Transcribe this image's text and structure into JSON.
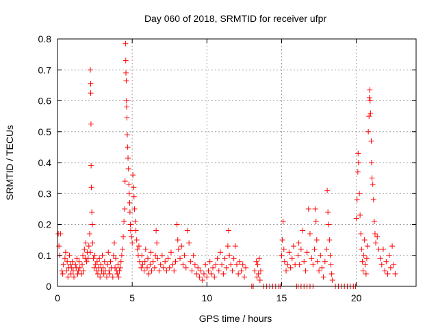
{
  "chart_data": {
    "type": "scatter",
    "title": "Day 060 of 2018, SRMTID for receiver ufpr",
    "xlabel": "GPS time / hours",
    "ylabel": "SRMTID / TECUs",
    "xlim": [
      0,
      24
    ],
    "ylim": [
      0,
      0.8
    ],
    "xticks": [
      "0",
      "5",
      "10",
      "15",
      "20"
    ],
    "yticks": [
      "0",
      "0.1",
      "0.2",
      "0.3",
      "0.4",
      "0.5",
      "0.6",
      "0.7",
      "0.8"
    ],
    "grid": true,
    "marker": "+",
    "color": "#ff0000",
    "series": [
      {
        "name": "SRMTID",
        "points": [
          [
            0.05,
            0.17
          ],
          [
            0.1,
            0.13
          ],
          [
            0.15,
            0.1
          ],
          [
            0.2,
            0.17
          ],
          [
            0.3,
            0.05
          ],
          [
            0.35,
            0.04
          ],
          [
            0.4,
            0.07
          ],
          [
            0.5,
            0.09
          ],
          [
            0.55,
            0.11
          ],
          [
            0.6,
            0.05
          ],
          [
            0.65,
            0.08
          ],
          [
            0.7,
            0.03
          ],
          [
            0.75,
            0.06
          ],
          [
            0.8,
            0.1
          ],
          [
            0.85,
            0.07
          ],
          [
            0.9,
            0.04
          ],
          [
            0.95,
            0.06
          ],
          [
            1.0,
            0.08
          ],
          [
            1.05,
            0.05
          ],
          [
            1.1,
            0.03
          ],
          [
            1.2,
            0.07
          ],
          [
            1.25,
            0.06
          ],
          [
            1.3,
            0.09
          ],
          [
            1.35,
            0.04
          ],
          [
            1.4,
            0.05
          ],
          [
            1.45,
            0.08
          ],
          [
            1.5,
            0.06
          ],
          [
            1.6,
            0.04
          ],
          [
            1.65,
            0.07
          ],
          [
            1.7,
            0.1
          ],
          [
            1.75,
            0.05
          ],
          [
            1.8,
            0.12
          ],
          [
            1.85,
            0.09
          ],
          [
            1.9,
            0.14
          ],
          [
            1.95,
            0.08
          ],
          [
            2.0,
            0.11
          ],
          [
            2.05,
            0.09
          ],
          [
            2.1,
            0.13
          ],
          [
            2.15,
            0.17
          ],
          [
            2.2,
            0.11
          ],
          [
            2.2,
            0.7
          ],
          [
            2.22,
            0.655
          ],
          [
            2.22,
            0.625
          ],
          [
            2.24,
            0.525
          ],
          [
            2.25,
            0.39
          ],
          [
            2.27,
            0.32
          ],
          [
            2.3,
            0.24
          ],
          [
            2.33,
            0.2
          ],
          [
            2.35,
            0.14
          ],
          [
            2.4,
            0.09
          ],
          [
            2.45,
            0.06
          ],
          [
            2.5,
            0.1
          ],
          [
            2.55,
            0.07
          ],
          [
            2.6,
            0.05
          ],
          [
            2.65,
            0.08
          ],
          [
            2.7,
            0.04
          ],
          [
            2.75,
            0.06
          ],
          [
            2.8,
            0.09
          ],
          [
            2.85,
            0.03
          ],
          [
            2.9,
            0.07
          ],
          [
            2.95,
            0.05
          ],
          [
            3.0,
            0.1
          ],
          [
            3.05,
            0.06
          ],
          [
            3.1,
            0.04
          ],
          [
            3.15,
            0.08
          ],
          [
            3.2,
            0.05
          ],
          [
            3.3,
            0.03
          ],
          [
            3.35,
            0.07
          ],
          [
            3.4,
            0.11
          ],
          [
            3.45,
            0.05
          ],
          [
            3.5,
            0.04
          ],
          [
            3.55,
            0.08
          ],
          [
            3.6,
            0.06
          ],
          [
            3.7,
            0.03
          ],
          [
            3.75,
            0.1
          ],
          [
            3.8,
            0.14
          ],
          [
            3.85,
            0.06
          ],
          [
            3.9,
            0.09
          ],
          [
            3.95,
            0.05
          ],
          [
            4.0,
            0.04
          ],
          [
            4.05,
            0.07
          ],
          [
            4.1,
            0.03
          ],
          [
            4.15,
            0.05
          ],
          [
            4.2,
            0.06
          ],
          [
            4.25,
            0.08
          ],
          [
            4.3,
            0.1
          ],
          [
            4.35,
            0.12
          ],
          [
            4.4,
            0.16
          ],
          [
            4.45,
            0.21
          ],
          [
            4.5,
            0.25
          ],
          [
            4.52,
            0.34
          ],
          [
            4.55,
            0.785
          ],
          [
            4.57,
            0.73
          ],
          [
            4.58,
            0.69
          ],
          [
            4.6,
            0.665
          ],
          [
            4.62,
            0.6
          ],
          [
            4.63,
            0.58
          ],
          [
            4.65,
            0.545
          ],
          [
            4.67,
            0.49
          ],
          [
            4.7,
            0.45
          ],
          [
            4.72,
            0.415
          ],
          [
            4.75,
            0.38
          ],
          [
            4.78,
            0.33
          ],
          [
            4.8,
            0.3
          ],
          [
            4.83,
            0.27
          ],
          [
            4.85,
            0.24
          ],
          [
            4.88,
            0.2
          ],
          [
            4.9,
            0.18
          ],
          [
            4.95,
            0.16
          ],
          [
            5.0,
            0.14
          ],
          [
            5.05,
            0.36
          ],
          [
            5.1,
            0.32
          ],
          [
            5.12,
            0.29
          ],
          [
            5.15,
            0.25
          ],
          [
            5.2,
            0.21
          ],
          [
            5.25,
            0.18
          ],
          [
            5.3,
            0.15
          ],
          [
            5.35,
            0.12
          ],
          [
            5.4,
            0.1
          ],
          [
            5.45,
            0.13
          ],
          [
            5.5,
            0.08
          ],
          [
            5.6,
            0.06
          ],
          [
            5.65,
            0.1
          ],
          [
            5.7,
            0.07
          ],
          [
            5.8,
            0.05
          ],
          [
            5.85,
            0.08
          ],
          [
            5.9,
            0.12
          ],
          [
            6.0,
            0.06
          ],
          [
            6.05,
            0.09
          ],
          [
            6.1,
            0.04
          ],
          [
            6.2,
            0.07
          ],
          [
            6.25,
            0.11
          ],
          [
            6.3,
            0.05
          ],
          [
            6.4,
            0.08
          ],
          [
            6.5,
            0.06
          ],
          [
            6.55,
            0.1
          ],
          [
            6.6,
            0.18
          ],
          [
            6.65,
            0.14
          ],
          [
            6.7,
            0.09
          ],
          [
            6.8,
            0.05
          ],
          [
            6.9,
            0.07
          ],
          [
            7.0,
            0.1
          ],
          [
            7.1,
            0.06
          ],
          [
            7.2,
            0.08
          ],
          [
            7.3,
            0.05
          ],
          [
            7.4,
            0.09
          ],
          [
            7.5,
            0.06
          ],
          [
            7.6,
            0.11
          ],
          [
            7.7,
            0.07
          ],
          [
            7.8,
            0.05
          ],
          [
            7.9,
            0.08
          ],
          [
            8.0,
            0.2
          ],
          [
            8.05,
            0.15
          ],
          [
            8.1,
            0.12
          ],
          [
            8.2,
            0.09
          ],
          [
            8.3,
            0.13
          ],
          [
            8.4,
            0.07
          ],
          [
            8.5,
            0.1
          ],
          [
            8.6,
            0.06
          ],
          [
            8.7,
            0.18
          ],
          [
            8.8,
            0.14
          ],
          [
            8.9,
            0.08
          ],
          [
            9.0,
            0.05
          ],
          [
            9.1,
            0.1
          ],
          [
            9.2,
            0.07
          ],
          [
            9.3,
            0.04
          ],
          [
            9.4,
            0.06
          ],
          [
            9.5,
            0.03
          ],
          [
            9.6,
            0.05
          ],
          [
            9.7,
            0.02
          ],
          [
            9.8,
            0.04
          ],
          [
            9.9,
            0.07
          ],
          [
            10.0,
            0.03
          ],
          [
            10.1,
            0.05
          ],
          [
            10.2,
            0.08
          ],
          [
            10.3,
            0.04
          ],
          [
            10.4,
            0.06
          ],
          [
            10.5,
            0.03
          ],
          [
            10.6,
            0.07
          ],
          [
            10.7,
            0.09
          ],
          [
            10.8,
            0.05
          ],
          [
            10.9,
            0.11
          ],
          [
            11.0,
            0.07
          ],
          [
            11.1,
            0.04
          ],
          [
            11.2,
            0.09
          ],
          [
            11.3,
            0.06
          ],
          [
            11.4,
            0.13
          ],
          [
            11.45,
            0.18
          ],
          [
            11.5,
            0.1
          ],
          [
            11.6,
            0.07
          ],
          [
            11.7,
            0.05
          ],
          [
            11.8,
            0.09
          ],
          [
            11.9,
            0.13
          ],
          [
            12.0,
            0.07
          ],
          [
            12.1,
            0.04
          ],
          [
            12.2,
            0.08
          ],
          [
            12.3,
            0.05
          ],
          [
            12.4,
            0.07
          ],
          [
            12.5,
            0.03
          ],
          [
            12.6,
            0.06
          ],
          [
            13.0,
            0.0
          ],
          [
            13.1,
            0.0
          ],
          [
            13.2,
            0.05
          ],
          [
            13.3,
            0.08
          ],
          [
            13.35,
            0.03
          ],
          [
            13.4,
            0.07
          ],
          [
            13.45,
            0.04
          ],
          [
            13.5,
            0.09
          ],
          [
            13.55,
            0.02
          ],
          [
            13.6,
            0.05
          ],
          [
            13.8,
            0.0
          ],
          [
            14.0,
            0.0
          ],
          [
            14.2,
            0.0
          ],
          [
            14.4,
            0.0
          ],
          [
            14.6,
            0.0
          ],
          [
            14.8,
            0.0
          ],
          [
            14.9,
            0.0
          ],
          [
            15.0,
            0.1
          ],
          [
            15.05,
            0.15
          ],
          [
            15.1,
            0.21
          ],
          [
            15.15,
            0.12
          ],
          [
            15.2,
            0.08
          ],
          [
            15.3,
            0.05
          ],
          [
            15.4,
            0.07
          ],
          [
            15.5,
            0.11
          ],
          [
            15.6,
            0.06
          ],
          [
            15.7,
            0.09
          ],
          [
            15.8,
            0.13
          ],
          [
            15.9,
            0.07
          ],
          [
            16.0,
            0.0
          ],
          [
            16.1,
            0.0
          ],
          [
            16.3,
            0.0
          ],
          [
            16.5,
            0.0
          ],
          [
            16.7,
            0.0
          ],
          [
            16.9,
            0.0
          ],
          [
            17.1,
            0.0
          ],
          [
            16.1,
            0.1
          ],
          [
            16.15,
            0.14
          ],
          [
            16.2,
            0.07
          ],
          [
            16.3,
            0.12
          ],
          [
            16.4,
            0.18
          ],
          [
            16.5,
            0.08
          ],
          [
            16.6,
            0.05
          ],
          [
            16.7,
            0.11
          ],
          [
            16.8,
            0.25
          ],
          [
            16.9,
            0.17
          ],
          [
            17.0,
            0.09
          ],
          [
            17.1,
            0.07
          ],
          [
            17.2,
            0.12
          ],
          [
            17.25,
            0.25
          ],
          [
            17.3,
            0.21
          ],
          [
            17.35,
            0.15
          ],
          [
            17.4,
            0.08
          ],
          [
            17.5,
            0.05
          ],
          [
            17.6,
            0.1
          ],
          [
            17.7,
            0.06
          ],
          [
            17.8,
            0.03
          ],
          [
            17.9,
            0.08
          ],
          [
            18.0,
            0.12
          ],
          [
            18.05,
            0.31
          ],
          [
            18.1,
            0.24
          ],
          [
            18.15,
            0.2
          ],
          [
            18.2,
            0.15
          ],
          [
            18.25,
            0.1
          ],
          [
            18.3,
            0.07
          ],
          [
            18.35,
            0.04
          ],
          [
            18.4,
            0.02
          ],
          [
            18.6,
            0.0
          ],
          [
            18.8,
            0.0
          ],
          [
            19.0,
            0.0
          ],
          [
            19.2,
            0.0
          ],
          [
            19.4,
            0.0
          ],
          [
            19.6,
            0.0
          ],
          [
            19.8,
            0.0
          ],
          [
            19.95,
            0.0
          ],
          [
            20.0,
            0.22
          ],
          [
            20.05,
            0.28
          ],
          [
            20.1,
            0.37
          ],
          [
            20.12,
            0.43
          ],
          [
            20.15,
            0.4
          ],
          [
            20.2,
            0.3
          ],
          [
            20.25,
            0.23
          ],
          [
            20.3,
            0.17
          ],
          [
            20.35,
            0.12
          ],
          [
            20.4,
            0.08
          ],
          [
            20.45,
            0.05
          ],
          [
            20.5,
            0.1
          ],
          [
            20.55,
            0.15
          ],
          [
            20.6,
            0.07
          ],
          [
            20.65,
            0.04
          ],
          [
            20.7,
            0.09
          ],
          [
            20.75,
            0.13
          ],
          [
            20.8,
            0.5
          ],
          [
            20.85,
            0.55
          ],
          [
            20.88,
            0.61
          ],
          [
            20.9,
            0.635
          ],
          [
            20.92,
            0.6
          ],
          [
            20.95,
            0.56
          ],
          [
            21.0,
            0.47
          ],
          [
            21.02,
            0.4
          ],
          [
            21.05,
            0.35
          ],
          [
            21.1,
            0.33
          ],
          [
            21.15,
            0.28
          ],
          [
            21.2,
            0.21
          ],
          [
            21.25,
            0.17
          ],
          [
            21.3,
            0.14
          ],
          [
            21.4,
            0.16
          ],
          [
            21.5,
            0.12
          ],
          [
            21.6,
            0.09
          ],
          [
            21.7,
            0.07
          ],
          [
            21.8,
            0.12
          ],
          [
            21.9,
            0.05
          ],
          [
            22.0,
            0.08
          ],
          [
            22.1,
            0.04
          ],
          [
            22.2,
            0.1
          ],
          [
            22.3,
            0.06
          ],
          [
            22.4,
            0.13
          ],
          [
            22.5,
            0.07
          ],
          [
            22.6,
            0.04
          ]
        ]
      }
    ]
  }
}
